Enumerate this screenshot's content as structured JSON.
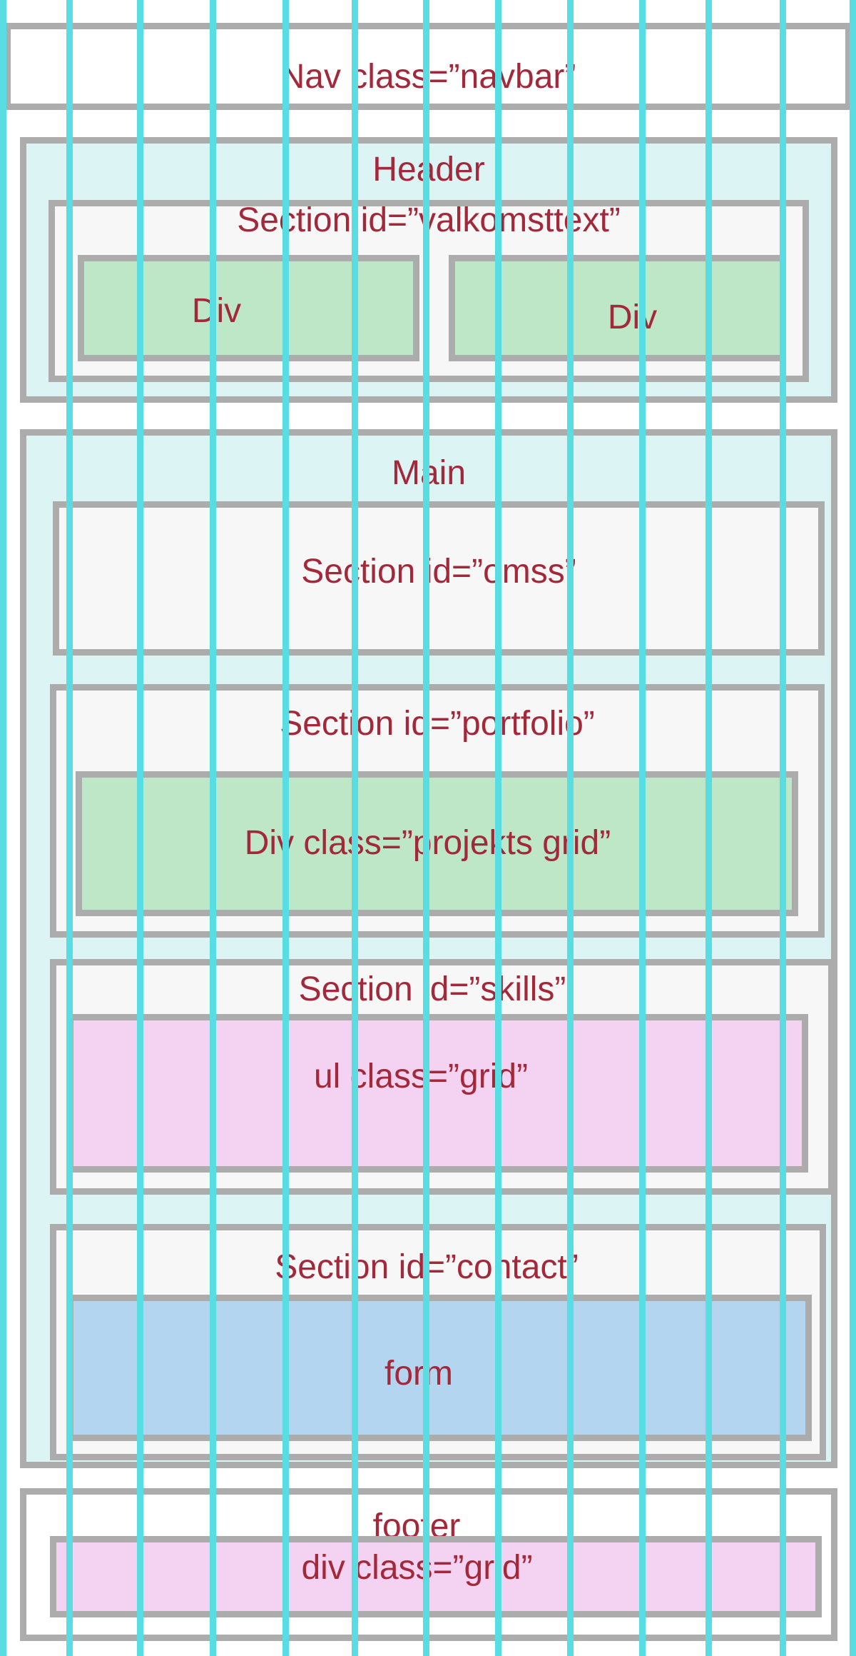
{
  "nav": {
    "label": "Nav class=”navbar”"
  },
  "header": {
    "label": "Header",
    "section": {
      "label": "Section id=”valkomsttext”",
      "div_left": "Div",
      "div_right": "Div"
    }
  },
  "main": {
    "label": "Main",
    "omss": {
      "label": "Section id=”omss”"
    },
    "portfolio": {
      "label": "Section id=”portfolio”",
      "inner": "Div class=”projekts grid”"
    },
    "skills": {
      "label": "Section id=”skills”",
      "inner": "ul class=”grid”"
    },
    "contact": {
      "label": "Section id=”contact”",
      "inner": "form"
    }
  },
  "footer": {
    "label": "footer",
    "inner": "div class=”grid”"
  },
  "colors": {
    "label_text": "#a3283a",
    "border": "#acacac",
    "column_lines": "#57dde2",
    "header_main_bg": "#dcf4f4",
    "section_bg": "#f6f7f6",
    "div_green": "#bde7c6",
    "grid_pink": "#f4d3f2",
    "form_blue": "#b4d5f0"
  }
}
